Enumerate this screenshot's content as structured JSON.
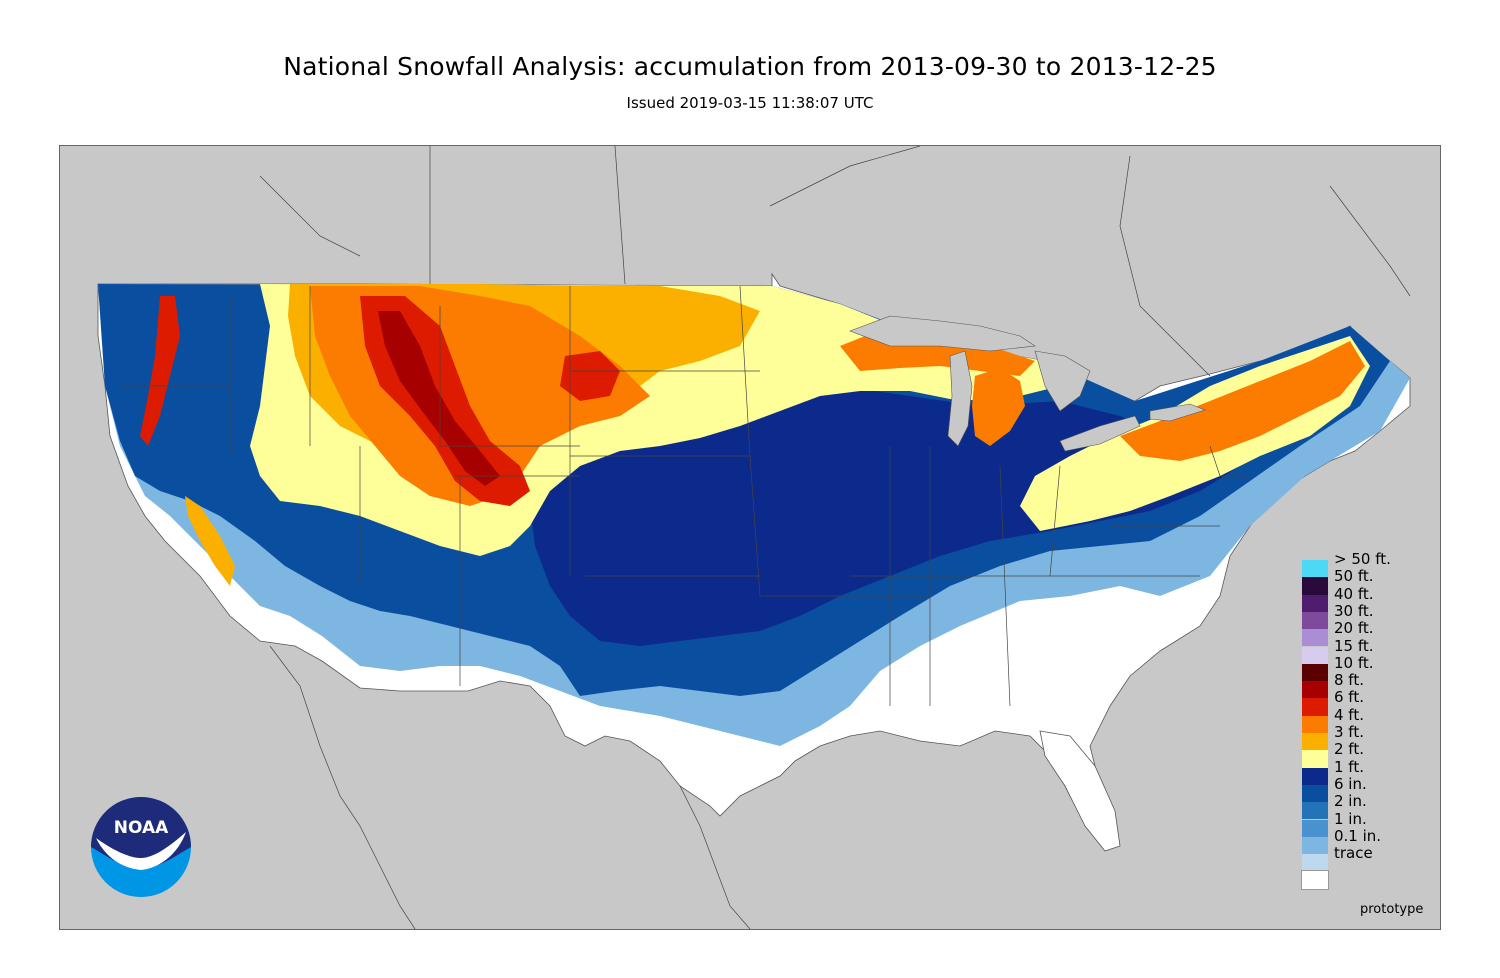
{
  "header": {
    "title": "National Snowfall Analysis: accumulation from 2013-09-30 to 2013-12-25",
    "subtitle": "Issued 2019-03-15 11:38:07 UTC"
  },
  "map": {
    "background_color": "#c8c8c8",
    "watermark": "prototype",
    "logo": {
      "text": "NOAA",
      "icon": "noaa-logo-icon"
    }
  },
  "legend": {
    "items": [
      {
        "label": "> 50 ft.",
        "color": "#4dd9f5"
      },
      {
        "label": "50 ft.",
        "color": "#2a0a3a"
      },
      {
        "label": "40 ft.",
        "color": "#4f1c6e"
      },
      {
        "label": "30 ft.",
        "color": "#7e4a9e"
      },
      {
        "label": "20 ft.",
        "color": "#a98ed6"
      },
      {
        "label": "15 ft.",
        "color": "#d7ccf0"
      },
      {
        "label": "10 ft.",
        "color": "#5a0000"
      },
      {
        "label": "8 ft.",
        "color": "#a60000"
      },
      {
        "label": "6 ft.",
        "color": "#dc1b00"
      },
      {
        "label": "4 ft.",
        "color": "#fb7c00"
      },
      {
        "label": "3 ft.",
        "color": "#fbb000"
      },
      {
        "label": "2 ft.",
        "color": "#ffff99"
      },
      {
        "label": "1 ft.",
        "color": "#0c2a8c"
      },
      {
        "label": "6 in.",
        "color": "#0a4ea0"
      },
      {
        "label": "2 in.",
        "color": "#2373b8"
      },
      {
        "label": "1 in.",
        "color": "#4a92cf"
      },
      {
        "label": "0.1 in.",
        "color": "#7eb6e2"
      },
      {
        "label": "trace",
        "color": "#bed9ee"
      },
      {
        "label": "",
        "color": "#ffffff"
      }
    ]
  }
}
